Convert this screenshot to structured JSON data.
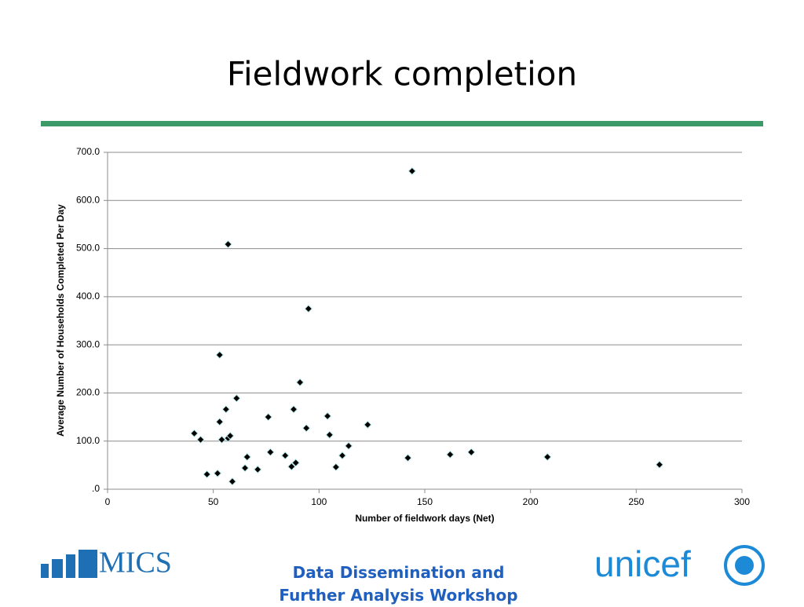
{
  "chart_data": {
    "type": "scatter",
    "title": "Fieldwork completion",
    "x_label": "Number of fieldwork days (Net)",
    "y_label": "Average Number of Households Completed Per Day",
    "x": [
      41,
      44,
      47,
      52,
      53,
      53,
      54,
      56,
      57,
      57,
      58,
      59,
      61,
      65,
      66,
      71,
      76,
      77,
      84,
      87,
      88,
      89,
      91,
      94,
      95,
      104,
      105,
      108,
      111,
      114,
      123,
      142,
      144,
      162,
      172,
      208,
      261
    ],
    "values": [
      116,
      103,
      31,
      33,
      140,
      279,
      103,
      166,
      509,
      106,
      111,
      16,
      189,
      44,
      67,
      41,
      150,
      77,
      70,
      47,
      166,
      55,
      222,
      127,
      375,
      152,
      113,
      46,
      70,
      90,
      134,
      65,
      661,
      72,
      77,
      67,
      51
    ],
    "color": "#000000",
    "xlim": [
      0,
      300
    ],
    "xticks": [
      0,
      50,
      100,
      150,
      200,
      250,
      300
    ],
    "ylim": [
      0,
      700
    ],
    "yticks": [
      {
        "value": 0,
        "label": ".0"
      },
      {
        "value": 100,
        "label": "100.0"
      },
      {
        "value": 200,
        "label": "200.0"
      },
      {
        "value": 300,
        "label": "300.0"
      },
      {
        "value": 400,
        "label": "400.0"
      },
      {
        "value": 500,
        "label": "500.0"
      },
      {
        "value": 600,
        "label": "600.0"
      },
      {
        "value": 700,
        "label": "700.0"
      }
    ],
    "grid": true
  },
  "footer": {
    "text": "Data Dissemination and Further Analysis Workshop",
    "logo_left": "MICS",
    "logo_right": "unicef"
  }
}
